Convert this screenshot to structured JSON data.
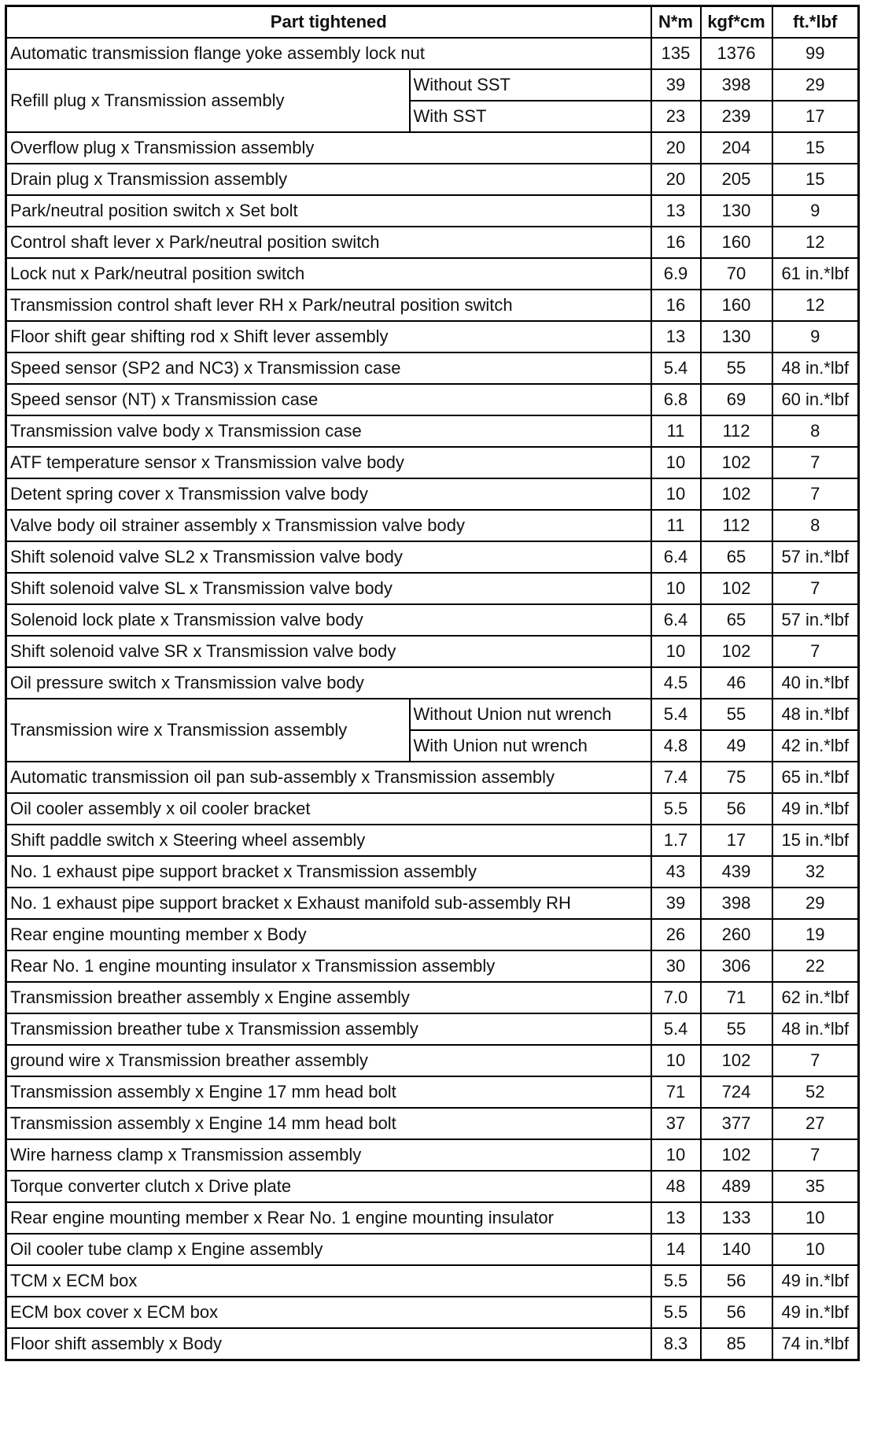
{
  "table": {
    "header": [
      "Part tightened",
      "N*m",
      "kgf*cm",
      "ft.*lbf"
    ],
    "rows": [
      {
        "part": "Automatic transmission flange yoke assembly lock nut",
        "values": [
          "135",
          "1376",
          "99"
        ]
      },
      {
        "part": "Refill plug x Transmission assembly",
        "variants": [
          {
            "condition": "Without SST",
            "values": [
              "39",
              "398",
              "29"
            ]
          },
          {
            "condition": "With SST",
            "values": [
              "23",
              "239",
              "17"
            ]
          }
        ]
      },
      {
        "part": "Overflow plug x Transmission assembly",
        "values": [
          "20",
          "204",
          "15"
        ]
      },
      {
        "part": "Drain plug x Transmission assembly",
        "values": [
          "20",
          "205",
          "15"
        ]
      },
      {
        "part": "Park/neutral position switch x Set bolt",
        "values": [
          "13",
          "130",
          "9"
        ]
      },
      {
        "part": "Control shaft lever x Park/neutral position switch",
        "values": [
          "16",
          "160",
          "12"
        ]
      },
      {
        "part": "Lock nut x Park/neutral position switch",
        "values": [
          "6.9",
          "70",
          "61 in.*lbf"
        ]
      },
      {
        "part": "Transmission control shaft lever RH x Park/neutral position switch",
        "values": [
          "16",
          "160",
          "12"
        ]
      },
      {
        "part": "Floor shift gear shifting rod x Shift lever assembly",
        "values": [
          "13",
          "130",
          "9"
        ]
      },
      {
        "part": "Speed sensor (SP2 and NC3) x Transmission case",
        "values": [
          "5.4",
          "55",
          "48 in.*lbf"
        ]
      },
      {
        "part": "Speed sensor (NT) x Transmission case",
        "values": [
          "6.8",
          "69",
          "60 in.*lbf"
        ]
      },
      {
        "part": "Transmission valve body x Transmission case",
        "values": [
          "11",
          "112",
          "8"
        ]
      },
      {
        "part": "ATF temperature sensor x Transmission valve body",
        "values": [
          "10",
          "102",
          "7"
        ]
      },
      {
        "part": "Detent spring cover x Transmission valve body",
        "values": [
          "10",
          "102",
          "7"
        ]
      },
      {
        "part": "Valve body oil strainer assembly x Transmission valve body",
        "values": [
          "11",
          "112",
          "8"
        ]
      },
      {
        "part": "Shift solenoid valve SL2 x Transmission valve body",
        "values": [
          "6.4",
          "65",
          "57 in.*lbf"
        ]
      },
      {
        "part": "Shift solenoid valve SL x Transmission valve body",
        "values": [
          "10",
          "102",
          "7"
        ]
      },
      {
        "part": "Solenoid lock plate x Transmission valve body",
        "values": [
          "6.4",
          "65",
          "57 in.*lbf"
        ]
      },
      {
        "part": "Shift solenoid valve SR x Transmission valve body",
        "values": [
          "10",
          "102",
          "7"
        ]
      },
      {
        "part": "Oil pressure switch x Transmission valve body",
        "values": [
          "4.5",
          "46",
          "40 in.*lbf"
        ]
      },
      {
        "part": "Transmission wire x Transmission assembly",
        "variants": [
          {
            "condition": "Without Union nut wrench",
            "values": [
              "5.4",
              "55",
              "48 in.*lbf"
            ]
          },
          {
            "condition": "With Union nut wrench",
            "values": [
              "4.8",
              "49",
              "42 in.*lbf"
            ]
          }
        ]
      },
      {
        "part": "Automatic transmission oil pan sub-assembly x Transmission assembly",
        "values": [
          "7.4",
          "75",
          "65 in.*lbf"
        ]
      },
      {
        "part": "Oil cooler assembly x oil cooler bracket",
        "values": [
          "5.5",
          "56",
          "49 in.*lbf"
        ]
      },
      {
        "part": "Shift paddle switch x Steering wheel assembly",
        "values": [
          "1.7",
          "17",
          "15 in.*lbf"
        ]
      },
      {
        "part": "No. 1 exhaust pipe support bracket x Transmission assembly",
        "values": [
          "43",
          "439",
          "32"
        ]
      },
      {
        "part": "No. 1 exhaust pipe support bracket x Exhaust manifold sub-assembly RH",
        "values": [
          "39",
          "398",
          "29"
        ]
      },
      {
        "part": "Rear engine mounting member x Body",
        "values": [
          "26",
          "260",
          "19"
        ]
      },
      {
        "part": "Rear No. 1 engine mounting insulator x Transmission assembly",
        "values": [
          "30",
          "306",
          "22"
        ]
      },
      {
        "part": "Transmission breather assembly x Engine assembly",
        "values": [
          "7.0",
          "71",
          "62 in.*lbf"
        ]
      },
      {
        "part": "Transmission breather tube x Transmission assembly",
        "values": [
          "5.4",
          "55",
          "48 in.*lbf"
        ]
      },
      {
        "part": "ground wire x Transmission breather assembly",
        "values": [
          "10",
          "102",
          "7"
        ]
      },
      {
        "part": "Transmission assembly x Engine 17 mm head bolt",
        "values": [
          "71",
          "724",
          "52"
        ]
      },
      {
        "part": "Transmission assembly x Engine 14 mm head bolt",
        "values": [
          "37",
          "377",
          "27"
        ]
      },
      {
        "part": "Wire harness clamp x Transmission assembly",
        "values": [
          "10",
          "102",
          "7"
        ]
      },
      {
        "part": "Torque converter clutch x Drive plate",
        "values": [
          "48",
          "489",
          "35"
        ]
      },
      {
        "part": "Rear engine mounting member x Rear No. 1 engine mounting insulator",
        "values": [
          "13",
          "133",
          "10"
        ]
      },
      {
        "part": "Oil cooler tube clamp x Engine assembly",
        "values": [
          "14",
          "140",
          "10"
        ]
      },
      {
        "part": "TCM x ECM box",
        "values": [
          "5.5",
          "56",
          "49 in.*lbf"
        ]
      },
      {
        "part": "ECM box cover x ECM box",
        "values": [
          "5.5",
          "56",
          "49 in.*lbf"
        ]
      },
      {
        "part": "Floor shift assembly x Body",
        "values": [
          "8.3",
          "85",
          "74 in.*lbf"
        ]
      }
    ]
  }
}
